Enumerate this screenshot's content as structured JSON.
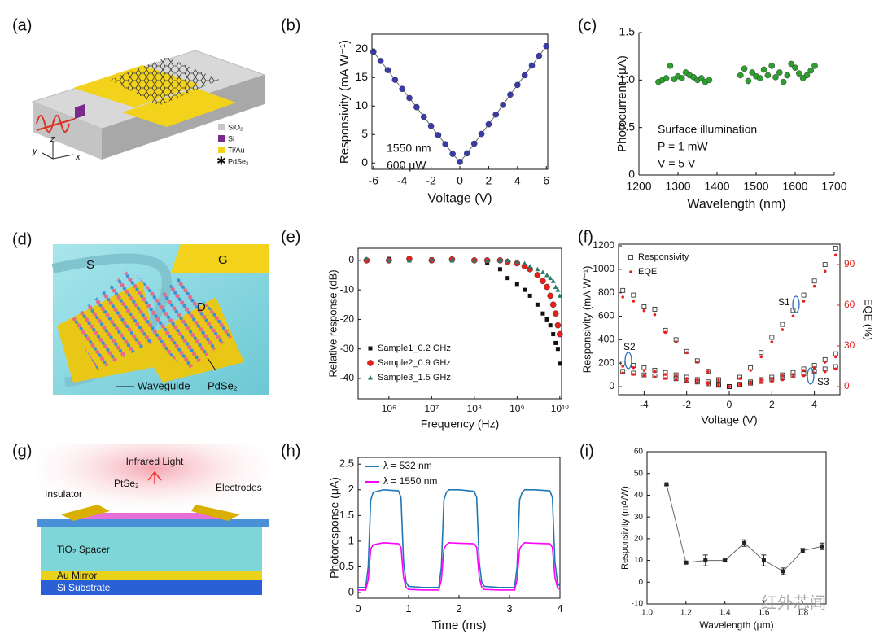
{
  "chart_data": [
    {
      "type": "line",
      "panel_label": "(b)",
      "xlabel": "Voltage (V)",
      "ylabel": "Responsivity (mA W⁻¹)",
      "annotations": [
        "1550 nm",
        "600 μW"
      ],
      "x": [
        -6,
        -5.5,
        -5,
        -4.5,
        -4,
        -3.5,
        -3,
        -2.5,
        -2,
        -1.5,
        -1,
        -0.5,
        0,
        0.5,
        1,
        1.5,
        2,
        2.5,
        3,
        3.5,
        4,
        4.5,
        5,
        5.5,
        6
      ],
      "values": [
        19.5,
        17.9,
        16.3,
        14.6,
        13.0,
        11.4,
        9.8,
        8.1,
        6.5,
        4.9,
        3.3,
        1.6,
        0.2,
        1.7,
        3.4,
        5.1,
        6.8,
        8.5,
        10.2,
        12.0,
        13.7,
        15.4,
        17.1,
        18.8,
        20.5
      ],
      "color": "#3b3ba8",
      "marker": "circle",
      "xlim": [
        -6.1,
        6.1
      ],
      "ylim": [
        -1.1,
        22.6
      ],
      "xticks": [
        -6,
        -4,
        -2,
        0,
        2,
        4,
        6
      ],
      "yticks": [
        0,
        5,
        10,
        15,
        20
      ]
    },
    {
      "type": "scatter",
      "panel_label": "(c)",
      "xlabel": "Wavelength (nm)",
      "ylabel": "Photocurrent (μA)",
      "annotations": [
        "Surface illumination",
        "P = 1 mW",
        "V = 5 V"
      ],
      "x": [
        1250,
        1260,
        1270,
        1280,
        1290,
        1300,
        1310,
        1320,
        1330,
        1340,
        1350,
        1360,
        1370,
        1380,
        1460,
        1470,
        1480,
        1490,
        1500,
        1510,
        1520,
        1530,
        1540,
        1550,
        1560,
        1570,
        1580,
        1590,
        1600,
        1610,
        1620,
        1630,
        1640,
        1650
      ],
      "values": [
        0.98,
        1.0,
        1.02,
        1.15,
        1.01,
        1.04,
        1.02,
        1.08,
        1.05,
        1.03,
        1.0,
        1.02,
        0.98,
        1.0,
        1.05,
        1.12,
        0.99,
        1.08,
        1.04,
        1.02,
        1.11,
        1.05,
        1.15,
        1.03,
        1.08,
        0.98,
        1.05,
        1.17,
        1.13,
        1.07,
        1.02,
        1.05,
        1.1,
        1.15
      ],
      "color": "#2e9e2e",
      "marker": "circle",
      "xlim": [
        1200,
        1700
      ],
      "ylim": [
        0,
        1.5
      ],
      "xticks": [
        1200,
        1300,
        1400,
        1500,
        1600,
        1700
      ],
      "yticks": [
        0,
        0.5,
        {
          "value": 1,
          "label": "1.0"
        },
        1.5
      ]
    },
    {
      "type": "scatter",
      "panel_label": "(e)",
      "xlabel": "Frequency (Hz)",
      "ylabel": "Relative response (dB)",
      "xscale": "log",
      "legend": "lower left",
      "x": [
        300000,
        1000000,
        3000000,
        10000000,
        30000000,
        100000000,
        200000000,
        400000000,
        600000000,
        1000000000,
        1500000000,
        2000000000,
        3000000000,
        4000000000,
        5000000000,
        6000000000,
        7000000000,
        8000000000,
        9000000000,
        10000000000
      ],
      "series": [
        {
          "name": "Sample1_0.2 GHz",
          "color": "#111111",
          "marker": "square",
          "values": [
            0,
            0.5,
            0,
            0.3,
            0,
            0,
            -1,
            -3,
            -6,
            -8,
            -10,
            -12,
            -15,
            -18,
            -20,
            -22,
            -25,
            -28,
            -30,
            -35
          ]
        },
        {
          "name": "Sample2_0.9 GHz",
          "color": "#e8201a",
          "marker": "circle",
          "values": [
            0,
            0,
            0.5,
            0,
            0.3,
            0,
            0,
            0,
            -0.5,
            -1,
            -2,
            -3,
            -5,
            -7,
            -9,
            -12,
            -15,
            -18,
            -22,
            -25
          ]
        },
        {
          "name": "Sample3_1.5 GHz",
          "color": "#2a7a6a",
          "marker": "triangle",
          "values": [
            0.5,
            0,
            0,
            0.3,
            0,
            0,
            0,
            0,
            0,
            -0.5,
            -1,
            -2,
            -3,
            -4,
            -5,
            -6,
            -7,
            -9,
            -10,
            -12
          ]
        }
      ],
      "xlim": [
        190000,
        11000000000
      ],
      "ylim": [
        -46.9,
        4.1
      ],
      "xticks": [
        {
          "value": 1000000,
          "label": "10⁶"
        },
        {
          "value": 10000000,
          "label": "10⁷"
        },
        {
          "value": 100000000,
          "label": "10⁸"
        },
        {
          "value": 1000000000,
          "label": "10⁹"
        },
        {
          "value": 10000000000,
          "label": "10¹⁰"
        }
      ],
      "yticks": [
        0,
        -10,
        -20,
        -30,
        -40
      ]
    },
    {
      "type": "scatter",
      "panel_label": "(f)",
      "xlabel": "Voltage (V)",
      "ylabel": "Responsivity (mA W⁻¹)",
      "y2label": "EQE (%)",
      "legend": "upper left",
      "annotations": [
        "S1",
        "S2",
        "S3"
      ],
      "x": [
        -5,
        -4.5,
        -4,
        -3.5,
        -3,
        -2.5,
        -2,
        -1.5,
        -1,
        -0.5,
        0,
        0.5,
        1,
        1.5,
        2,
        2.5,
        3,
        3.5,
        4,
        4.5,
        5,
        -5,
        -4.5,
        -4,
        -3.5,
        -3,
        -2.5,
        -2,
        -1.5,
        -1,
        -0.5,
        0,
        0.5,
        1,
        1.5,
        2,
        2.5,
        3,
        3.5,
        4,
        4.5,
        5,
        -5,
        -4.5,
        -4,
        -3.5,
        -3,
        -2.5,
        -2,
        -1.5,
        -1,
        -0.5,
        0,
        0.5,
        1,
        1.5,
        2,
        2.5,
        3,
        3.5,
        4,
        4.5,
        5
      ],
      "series": [
        {
          "name": "Responsivity",
          "color": "#222222",
          "marker": "open-square",
          "values": [
            820,
            780,
            680,
            660,
            480,
            400,
            300,
            220,
            130,
            60,
            0,
            80,
            160,
            290,
            420,
            530,
            650,
            780,
            900,
            1040,
            1180,
            200,
            180,
            160,
            140,
            120,
            100,
            80,
            60,
            40,
            20,
            0,
            20,
            40,
            60,
            80,
            100,
            120,
            150,
            180,
            230,
            280,
            130,
            115,
            100,
            90,
            80,
            68,
            55,
            40,
            25,
            12,
            0,
            15,
            30,
            45,
            60,
            75,
            90,
            110,
            130,
            150,
            170
          ]
        },
        {
          "name": "EQE",
          "color": "#e8201a",
          "marker": "dot",
          "axis": "y2",
          "values": [
            66,
            63,
            56,
            53,
            40,
            33,
            25,
            18,
            11,
            5,
            0,
            6,
            12,
            22,
            33,
            42,
            52,
            63,
            74,
            85,
            97,
            15,
            14,
            12,
            11,
            9,
            8,
            6,
            5,
            3,
            2,
            0,
            2,
            3,
            5,
            6,
            8,
            9,
            12,
            14,
            18,
            22,
            10,
            9,
            8,
            7,
            6,
            5,
            4,
            3,
            2,
            1,
            0,
            1,
            2,
            3,
            4,
            5,
            7,
            8,
            10,
            11,
            13
          ]
        }
      ],
      "xlim": [
        -5.2,
        5.2
      ],
      "ylim": [
        -69,
        1214
      ],
      "y2lim": [
        -6,
        105
      ],
      "xticks": [
        -4,
        -2,
        0,
        2,
        4
      ],
      "yticks": [
        0,
        200,
        400,
        600,
        800,
        1000,
        1200
      ],
      "y2ticks": [
        0,
        30,
        60,
        90
      ]
    },
    {
      "type": "line",
      "panel_label": "(h)",
      "xlabel": "Time (ms)",
      "ylabel": "Photoresponse (μA)",
      "legend": "upper left",
      "x": [
        0,
        0.15,
        0.2,
        0.25,
        0.3,
        0.5,
        0.8,
        0.85,
        0.9,
        0.95,
        1.0,
        1.3,
        1.6,
        1.65,
        1.7,
        1.75,
        1.8,
        2.0,
        2.3,
        2.35,
        2.4,
        2.45,
        2.5,
        2.8,
        3.1,
        3.15,
        3.2,
        3.25,
        3.3,
        3.5,
        3.8,
        3.85,
        3.9,
        3.95,
        4.0
      ],
      "series": [
        {
          "name": "λ = 532 nm",
          "color": "#1f77b4",
          "values": [
            0.1,
            0.1,
            0.5,
            1.8,
            1.95,
            2.0,
            1.98,
            1.85,
            0.6,
            0.2,
            0.12,
            0.1,
            0.1,
            0.5,
            1.8,
            1.95,
            2.0,
            2.0,
            1.97,
            1.85,
            0.6,
            0.2,
            0.12,
            0.1,
            0.1,
            0.5,
            1.8,
            1.95,
            2.0,
            2.0,
            1.98,
            1.85,
            0.6,
            0.2,
            0.12
          ]
        },
        {
          "name": "λ = 1550 nm",
          "color": "#ff00ff",
          "values": [
            0.05,
            0.05,
            0.25,
            0.85,
            0.93,
            0.97,
            0.95,
            0.88,
            0.3,
            0.1,
            0.06,
            0.05,
            0.05,
            0.25,
            0.85,
            0.93,
            0.97,
            0.96,
            0.95,
            0.88,
            0.3,
            0.1,
            0.06,
            0.05,
            0.05,
            0.25,
            0.85,
            0.93,
            0.97,
            0.96,
            0.95,
            0.88,
            0.3,
            0.1,
            0.06
          ]
        }
      ],
      "xlim": [
        0,
        4
      ],
      "ylim": [
        -0.11,
        2.63
      ],
      "xticks": [
        0,
        1,
        2,
        3,
        4
      ],
      "yticks": [
        0,
        0.5,
        1,
        1.5,
        2,
        2.5
      ]
    },
    {
      "type": "line",
      "panel_label": "(i)",
      "xlabel": "Wavelength (μm)",
      "ylabel": "Responsivity (mA/W)",
      "x": [
        1.1,
        1.2,
        1.3,
        1.4,
        1.5,
        1.6,
        1.7,
        1.8,
        1.9
      ],
      "values": [
        45,
        9,
        10,
        10,
        18,
        10,
        5,
        14.5,
        16.5
      ],
      "errors": [
        0.5,
        0.5,
        2.5,
        0.5,
        1.5,
        2.5,
        1.5,
        1,
        1.5
      ],
      "color": "#222222",
      "marker": "square",
      "xlim": [
        1.0,
        1.92
      ],
      "ylim": [
        -10,
        60
      ],
      "xticks": [
        {
          "value": 1,
          "label": "1.0"
        },
        1.2,
        1.4,
        1.6,
        1.8
      ],
      "yticks": [
        -10,
        0,
        10,
        20,
        30,
        40,
        50,
        60
      ]
    }
  ],
  "diagrams": {
    "a": {
      "panel_label": "(a)",
      "legend": [
        "SiO₂",
        "Si",
        "Ti/Au",
        "PdSe₂"
      ],
      "axes": [
        "z",
        "y",
        "x"
      ]
    },
    "d": {
      "panel_label": "(d)",
      "labels": [
        "S",
        "G",
        "D",
        "Waveguide",
        "PdSe₂"
      ]
    },
    "g": {
      "panel_label": "(g)",
      "labels": [
        "Infrared Light",
        "PtSe₂",
        "Insulator",
        "Electrodes",
        "TiO₂ Spacer",
        "Au Mirror",
        "Si Substrate"
      ]
    }
  },
  "watermark": "红外芯闻"
}
